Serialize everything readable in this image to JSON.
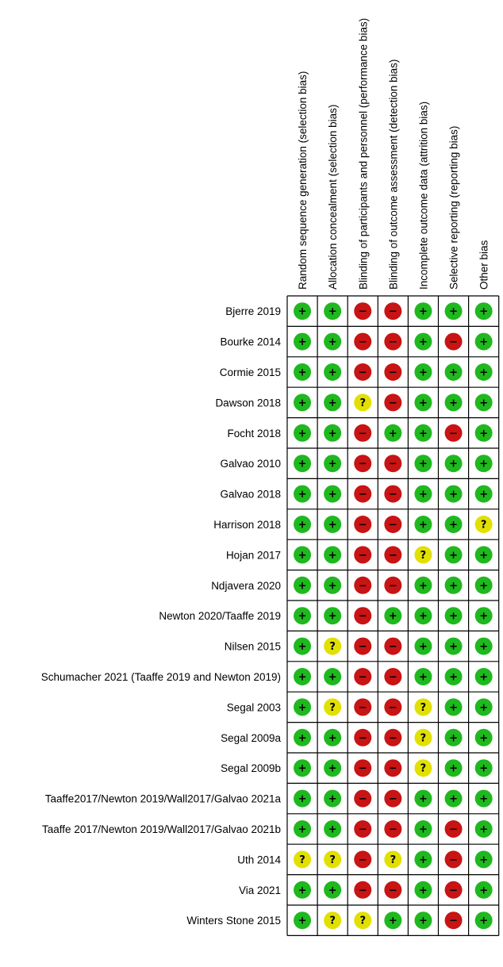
{
  "chart_data": {
    "type": "table",
    "columns": [
      "Random sequence generation (selection bias)",
      "Allocation concealment (selection bias)",
      "Blinding of participants and personnel (performance bias)",
      "Blinding of outcome assessment (detection bias)",
      "Incomplete outcome data (attrition bias)",
      "Selective reporting (reporting bias)",
      "Other bias"
    ],
    "rows": [
      {
        "study": "Bjerre 2019",
        "ratings": [
          "+",
          "+",
          "-",
          "-",
          "+",
          "+",
          "+"
        ]
      },
      {
        "study": "Bourke 2014",
        "ratings": [
          "+",
          "+",
          "-",
          "-",
          "+",
          "-",
          "+"
        ]
      },
      {
        "study": "Cormie 2015",
        "ratings": [
          "+",
          "+",
          "-",
          "-",
          "+",
          "+",
          "+"
        ]
      },
      {
        "study": "Dawson 2018",
        "ratings": [
          "+",
          "+",
          "?",
          "-",
          "+",
          "+",
          "+"
        ]
      },
      {
        "study": "Focht 2018",
        "ratings": [
          "+",
          "+",
          "-",
          "+",
          "+",
          "-",
          "+"
        ]
      },
      {
        "study": "Galvao 2010",
        "ratings": [
          "+",
          "+",
          "-",
          "-",
          "+",
          "+",
          "+"
        ]
      },
      {
        "study": "Galvao 2018",
        "ratings": [
          "+",
          "+",
          "-",
          "-",
          "+",
          "+",
          "+"
        ]
      },
      {
        "study": "Harrison 2018",
        "ratings": [
          "+",
          "+",
          "-",
          "-",
          "+",
          "+",
          "?"
        ]
      },
      {
        "study": "Hojan 2017",
        "ratings": [
          "+",
          "+",
          "-",
          "-",
          "?",
          "+",
          "+"
        ]
      },
      {
        "study": "Ndjavera 2020",
        "ratings": [
          "+",
          "+",
          "-",
          "-",
          "+",
          "+",
          "+"
        ]
      },
      {
        "study": "Newton 2020/Taaffe 2019",
        "ratings": [
          "+",
          "+",
          "-",
          "+",
          "+",
          "+",
          "+"
        ]
      },
      {
        "study": "Nilsen 2015",
        "ratings": [
          "+",
          "?",
          "-",
          "-",
          "+",
          "+",
          "+"
        ]
      },
      {
        "study": "Schumacher 2021 (Taaffe 2019  and Newton 2019)",
        "ratings": [
          "+",
          "+",
          "-",
          "-",
          "+",
          "+",
          "+"
        ]
      },
      {
        "study": "Segal 2003",
        "ratings": [
          "+",
          "?",
          "-",
          "-",
          "?",
          "+",
          "+"
        ]
      },
      {
        "study": "Segal 2009a",
        "ratings": [
          "+",
          "+",
          "-",
          "-",
          "?",
          "+",
          "+"
        ]
      },
      {
        "study": "Segal 2009b",
        "ratings": [
          "+",
          "+",
          "-",
          "-",
          "?",
          "+",
          "+"
        ]
      },
      {
        "study": "Taaffe2017/Newton 2019/Wall2017/Galvao 2021a",
        "ratings": [
          "+",
          "+",
          "-",
          "-",
          "+",
          "+",
          "+"
        ]
      },
      {
        "study": "Taaffe 2017/Newton 2019/Wall2017/Galvao 2021b",
        "ratings": [
          "+",
          "+",
          "-",
          "-",
          "+",
          "-",
          "+"
        ]
      },
      {
        "study": "Uth 2014",
        "ratings": [
          "?",
          "?",
          "-",
          "?",
          "+",
          "-",
          "+"
        ]
      },
      {
        "study": "Via 2021",
        "ratings": [
          "+",
          "+",
          "-",
          "-",
          "+",
          "-",
          "+"
        ]
      },
      {
        "study": "Winters Stone 2015",
        "ratings": [
          "+",
          "?",
          "?",
          "+",
          "+",
          "-",
          "+"
        ]
      }
    ],
    "legend": {
      "+": {
        "label": "+",
        "color": "#1fb81f"
      },
      "-": {
        "label": "−",
        "color": "#c81414"
      },
      "?": {
        "label": "?",
        "color": "#e2e000"
      }
    },
    "grid": true
  }
}
